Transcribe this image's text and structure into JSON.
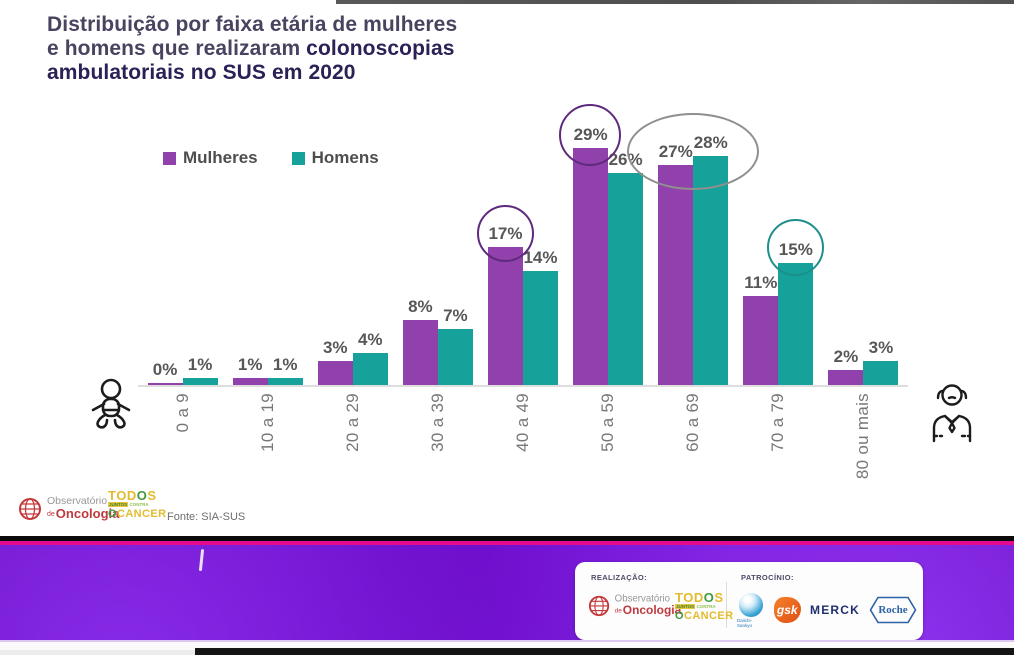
{
  "title": {
    "line1": "Distribuição por faixa etária de mulheres",
    "line2_regular": "e homens que realizaram ",
    "line2_bold": "colonoscopias",
    "line3_bold": "ambulatoriais no SUS em 2020"
  },
  "legend": [
    {
      "label": "Mulheres",
      "color": "#9141ab"
    },
    {
      "label": "Homens",
      "color": "#16a29b"
    }
  ],
  "chart_data": {
    "type": "bar",
    "title": "Distribuição por faixa etária de mulheres e homens que realizaram colonoscopias ambulatoriais no SUS em 2020",
    "categories": [
      "0 a 9",
      "10 a 19",
      "20 a 29",
      "30 a 39",
      "40 a 49",
      "50 a 59",
      "60 a 69",
      "70 a 79",
      "80 ou mais"
    ],
    "series": [
      {
        "name": "Mulheres",
        "color": "#9141ab",
        "values": [
          0,
          1,
          3,
          8,
          17,
          29,
          27,
          11,
          2
        ]
      },
      {
        "name": "Homens",
        "color": "#16a29b",
        "values": [
          1,
          1,
          4,
          7,
          14,
          26,
          28,
          15,
          3
        ]
      }
    ],
    "value_suffix": "%",
    "ylim": [
      0,
      30
    ],
    "grid": false,
    "legend_position": "top-left",
    "annotations": [
      {
        "series": "Mulheres",
        "category": "40 a 49",
        "label": "17%",
        "shape": "circle",
        "color": "#5e2a7e"
      },
      {
        "series": "Mulheres",
        "category": "50 a 59",
        "label": "29%",
        "shape": "circle",
        "color": "#5e2a7e"
      },
      {
        "series": "ambas",
        "category": "60 a 69",
        "label": "27% e 28%",
        "shape": "ellipse",
        "color": "#8f8f8f"
      },
      {
        "series": "Homens",
        "category": "70 a 79",
        "label": "15%",
        "shape": "circle",
        "color": "#1d8f8a"
      }
    ],
    "side_icons": {
      "left": "baby-icon",
      "right": "elderly-man-icon"
    }
  },
  "footer": {
    "source": "Fonte: SIA-SUS",
    "obs_logo": {
      "line1": "Observatório",
      "de": "de",
      "line2": "Oncologia"
    },
    "todos_logo": {
      "l1a": "TOD",
      "l1o": "O",
      "l1b": "S",
      "l2a": "JUNTOS",
      "l2b": "CONTRA",
      "l3o": "O",
      "l3": "CANCER"
    }
  },
  "banner_card": {
    "realizacao_label": "REALIZAÇÃO:",
    "patrocinio_label": "PATROCÍNIO:",
    "sponsors": {
      "daiichi": "Daiichi-Sankyo",
      "gsk": "gsk",
      "merck": "MERCK",
      "roche": "Roche"
    }
  }
}
